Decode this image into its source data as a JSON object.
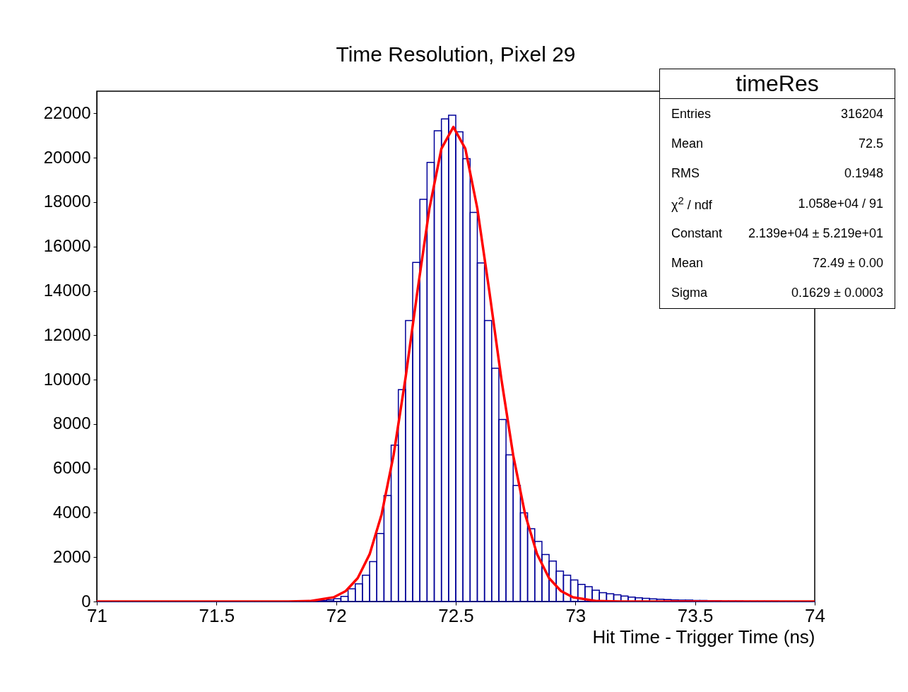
{
  "chart_data": {
    "type": "histogram",
    "title": "Time Resolution, Pixel 29",
    "xlabel": "Hit Time - Trigger Time (ns)",
    "legend_title": "timeRes",
    "annotations": [
      "Entries",
      "316204",
      "Mean",
      "72.5",
      "RMS",
      "0.1948",
      "χ$^{2}$ / ndf",
      "1.058e+04 / 91",
      "Constant",
      "2.139e+04 ± 5.219e+01",
      "Mean",
      "72.49 ± 0.00",
      "Sigma",
      "0.1629 ± 0.0003"
    ],
    "xlim": [
      71,
      74
    ],
    "xticks": [
      71,
      71.5,
      72,
      72.5,
      73,
      73.5,
      74
    ],
    "ylim": [
      0,
      23000
    ],
    "yticks": [
      0,
      2000,
      4000,
      6000,
      8000,
      10000,
      12000,
      14000,
      16000,
      18000,
      20000,
      22000
    ],
    "bins": [
      71,
      71.03,
      71.06,
      71.09,
      71.12,
      71.15,
      71.18,
      71.21,
      71.24,
      71.27,
      71.3,
      71.33,
      71.36,
      71.39,
      71.42,
      71.45,
      71.48,
      71.51,
      71.54,
      71.57,
      71.6,
      71.63,
      71.66,
      71.69,
      71.72,
      71.75,
      71.78,
      71.81,
      71.84,
      71.87,
      71.9,
      71.93,
      71.96,
      71.99,
      72.02,
      72.05,
      72.08,
      72.11,
      72.14,
      72.17,
      72.2,
      72.23,
      72.26,
      72.29,
      72.32,
      72.35,
      72.38,
      72.41,
      72.44,
      72.47,
      72.5,
      72.53,
      72.56,
      72.59,
      72.62,
      72.65,
      72.68,
      72.71,
      72.74,
      72.77,
      72.8,
      72.83,
      72.86,
      72.89,
      72.92,
      72.95,
      72.98,
      73.01,
      73.04,
      73.07,
      73.1,
      73.13,
      73.16,
      73.19,
      73.22,
      73.25,
      73.28,
      73.31,
      73.34,
      73.37,
      73.4,
      73.43,
      73.46,
      73.49,
      73.52,
      73.55,
      73.58,
      73.61,
      73.64,
      73.67,
      73.7,
      73.73,
      73.76,
      73.79,
      73.82,
      73.85,
      73.88,
      73.91,
      73.94,
      73.97,
      74
    ],
    "series": [
      {
        "color": "#000099",
        "values": [
          0,
          0,
          0,
          0,
          0,
          0,
          0,
          0,
          0,
          0,
          0,
          0,
          0,
          0,
          0,
          0,
          0,
          0,
          0,
          0,
          0,
          0,
          0,
          0,
          0,
          0,
          10,
          10,
          10,
          20,
          30,
          40,
          70,
          130,
          230,
          570,
          800,
          1190,
          1800,
          3070,
          4780,
          7050,
          9550,
          12660,
          15280,
          18130,
          19790,
          21220,
          21750,
          21920,
          21170,
          19960,
          17540,
          15260,
          12660,
          10510,
          8200,
          6610,
          5230,
          4000,
          3280,
          2710,
          2120,
          1820,
          1370,
          1190,
          970,
          770,
          670,
          510,
          400,
          350,
          300,
          250,
          200,
          170,
          140,
          120,
          100,
          90,
          70,
          60,
          60,
          50,
          50,
          40,
          40,
          30,
          30,
          30,
          20,
          20,
          20,
          20,
          20,
          10,
          10,
          10,
          10,
          10
        ]
      },
      {
        "type": "line",
        "color": "#ff0000",
        "x": [
          71,
          71.8,
          71.89,
          71.99,
          72.04,
          72.09,
          72.14,
          72.19,
          72.24,
          72.29,
          72.34,
          72.39,
          72.44,
          72.49,
          72.54,
          72.59,
          72.64,
          72.69,
          72.74,
          72.79,
          72.84,
          72.89,
          72.94,
          72.99,
          73.09,
          73.19,
          74
        ],
        "values": [
          0,
          0,
          20,
          190,
          470,
          1050,
          2130,
          3920,
          6590,
          10070,
          14000,
          17720,
          20410,
          21390,
          20410,
          17720,
          14000,
          10070,
          6590,
          3920,
          2130,
          1050,
          470,
          190,
          20,
          0,
          0
        ]
      }
    ]
  }
}
